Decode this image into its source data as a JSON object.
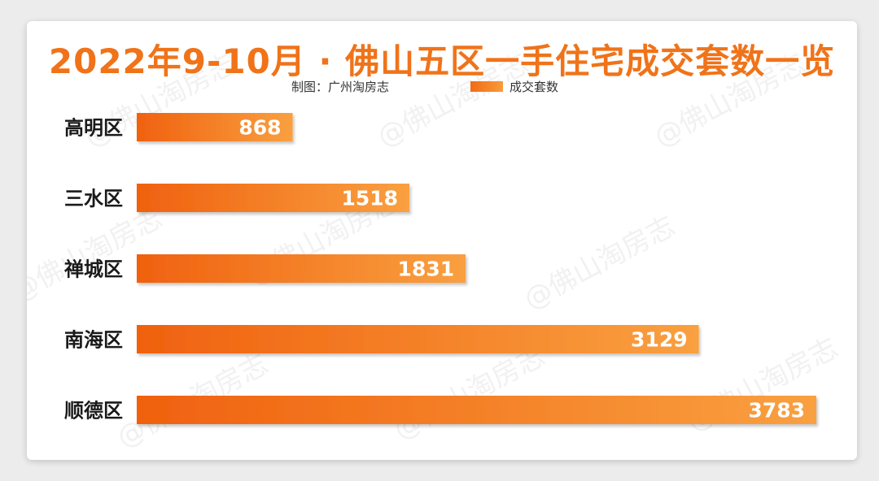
{
  "title": "2022年9-10月 · 佛山五区一手住宅成交套数一览",
  "credit": "制图：广州淘房志",
  "watermark": "@佛山淘房志",
  "colors": {
    "bar_start": "#f0610f",
    "bar_end": "#f9a040",
    "title": "#f07319"
  },
  "chart_data": {
    "type": "bar",
    "orientation": "horizontal",
    "categories": [
      "高明区",
      "三水区",
      "禅城区",
      "南海区",
      "顺德区"
    ],
    "series": [
      {
        "name": "成交套数",
        "values": [
          868,
          1518,
          1831,
          3129,
          3783
        ]
      }
    ],
    "xlim": [
      0,
      3783
    ],
    "grid": false,
    "legend": "top"
  }
}
